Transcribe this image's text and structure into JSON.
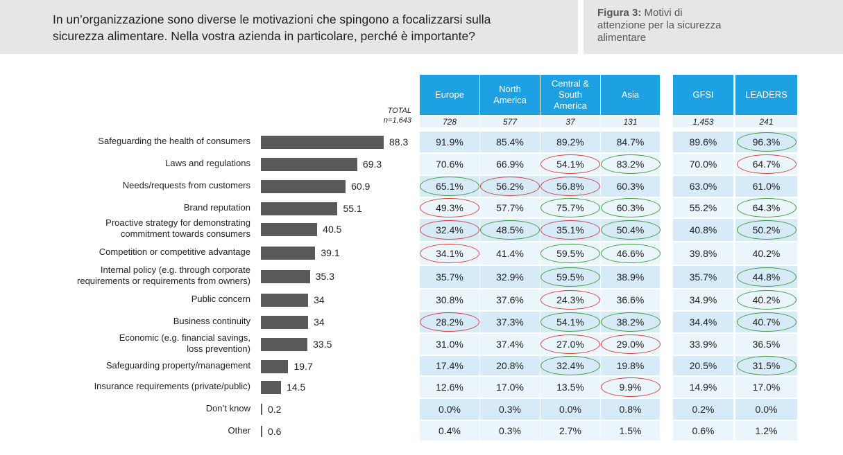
{
  "header": {
    "question_line1": "In un’organizzazione sono diverse le motivazioni che spingono a focalizzarsi sulla",
    "question_line2": "sicurezza alimentare. Nella vostra azienda in particolare, perché è importante?",
    "figure_label": "Figura 3:",
    "figure_title_line1": "Motivi di",
    "figure_title_line2": "attenzione per la sicurezza",
    "figure_title_line3": "alimentare"
  },
  "chart_data": {
    "type": "bar",
    "orientation": "horizontal",
    "total_label": "TOTAL",
    "total_n": "n=1,643",
    "categories": [
      [
        "Safeguarding the health of consumers"
      ],
      [
        "Laws and regulations"
      ],
      [
        "Needs/requests from customers"
      ],
      [
        "Brand reputation"
      ],
      [
        "Proactive strategy for demonstrating",
        "commitment towards consumers"
      ],
      [
        "Competition or competitive advantage"
      ],
      [
        "Internal policy (e.g. through corporate",
        "requirements or requirements from owners)"
      ],
      [
        "Public concern"
      ],
      [
        "Business continuity"
      ],
      [
        "Economic (e.g. financial savings,",
        "loss prevention)"
      ],
      [
        "Safeguarding property/management"
      ],
      [
        "Insurance requirements (private/public)"
      ],
      [
        "Don’t know"
      ],
      [
        "Other"
      ]
    ],
    "values": [
      88.3,
      69.3,
      60.9,
      55.1,
      40.5,
      39.1,
      35.3,
      34,
      34,
      33.5,
      19.7,
      14.5,
      0.2,
      0.6
    ],
    "value_labels": [
      "88.3",
      "69.3",
      "60.9",
      "55.1",
      "40.5",
      "39.1",
      "35.3",
      "34",
      "34",
      "33.5",
      "19.7",
      "14.5",
      "0.2",
      "0.6"
    ],
    "table": {
      "columns": [
        {
          "label": [
            "Europe"
          ],
          "n": "728"
        },
        {
          "label": [
            "North",
            "America"
          ],
          "n": "577"
        },
        {
          "label": [
            "Central &",
            "South",
            "America"
          ],
          "n": "37"
        },
        {
          "label": [
            "Asia"
          ],
          "n": "131"
        },
        {
          "label": [
            "GFSI"
          ],
          "n": "1,453"
        },
        {
          "label": [
            "LEADERS"
          ],
          "n": "241"
        }
      ],
      "rows": [
        [
          "91.9%",
          "85.4%",
          "89.2%",
          "84.7%",
          "89.6%",
          "96.3%"
        ],
        [
          "70.6%",
          "66.9%",
          "54.1%",
          "83.2%",
          "70.0%",
          "64.7%"
        ],
        [
          "65.1%",
          "56.2%",
          "56.8%",
          "60.3%",
          "63.0%",
          "61.0%"
        ],
        [
          "49.3%",
          "57.7%",
          "75.7%",
          "60.3%",
          "55.2%",
          "64.3%"
        ],
        [
          "32.4%",
          "48.5%",
          "35.1%",
          "50.4%",
          "40.8%",
          "50.2%"
        ],
        [
          "34.1%",
          "41.4%",
          "59.5%",
          "46.6%",
          "39.8%",
          "40.2%"
        ],
        [
          "35.7%",
          "32.9%",
          "59.5%",
          "38.9%",
          "35.7%",
          "44.8%"
        ],
        [
          "30.8%",
          "37.6%",
          "24.3%",
          "36.6%",
          "34.9%",
          "40.2%"
        ],
        [
          "28.2%",
          "37.3%",
          "54.1%",
          "38.2%",
          "34.4%",
          "40.7%"
        ],
        [
          "31.0%",
          "37.4%",
          "27.0%",
          "29.0%",
          "33.9%",
          "36.5%"
        ],
        [
          "17.4%",
          "20.8%",
          "32.4%",
          "19.8%",
          "20.5%",
          "31.5%"
        ],
        [
          "12.6%",
          "17.0%",
          "13.5%",
          "9.9%",
          "14.9%",
          "17.0%"
        ],
        [
          "0.0%",
          "0.3%",
          "0.0%",
          "0.8%",
          "0.2%",
          "0.0%"
        ],
        [
          "0.4%",
          "0.3%",
          "2.7%",
          "1.5%",
          "0.6%",
          "1.2%"
        ]
      ],
      "highlights": [
        [
          "",
          "",
          "",
          "",
          "",
          "green"
        ],
        [
          "",
          "",
          "red",
          "green",
          "",
          "red"
        ],
        [
          "green",
          "red",
          "red",
          "",
          "",
          ""
        ],
        [
          "red",
          "",
          "green",
          "green",
          "",
          "green"
        ],
        [
          "red",
          "green",
          "red",
          "green",
          "",
          "green"
        ],
        [
          "red",
          "",
          "green",
          "green",
          "",
          ""
        ],
        [
          "",
          "",
          "green",
          "",
          "",
          "green"
        ],
        [
          "",
          "",
          "red",
          "",
          "",
          "green"
        ],
        [
          "red",
          "",
          "green",
          "green",
          "",
          "green"
        ],
        [
          "",
          "",
          "red",
          "red",
          "",
          ""
        ],
        [
          "",
          "",
          "green",
          "",
          "",
          "green"
        ],
        [
          "",
          "",
          "",
          "red",
          "",
          ""
        ],
        [
          "",
          "",
          "",
          "",
          "",
          ""
        ],
        [
          "",
          "",
          "",
          "",
          "",
          ""
        ]
      ]
    },
    "colors": {
      "bar": "#595959",
      "header": "#1da1e2",
      "row_dark": "#d6eaf8",
      "row_light": "#ebf5fc",
      "above_average": "#3a9a3a",
      "below_average": "#d93a3a"
    }
  }
}
